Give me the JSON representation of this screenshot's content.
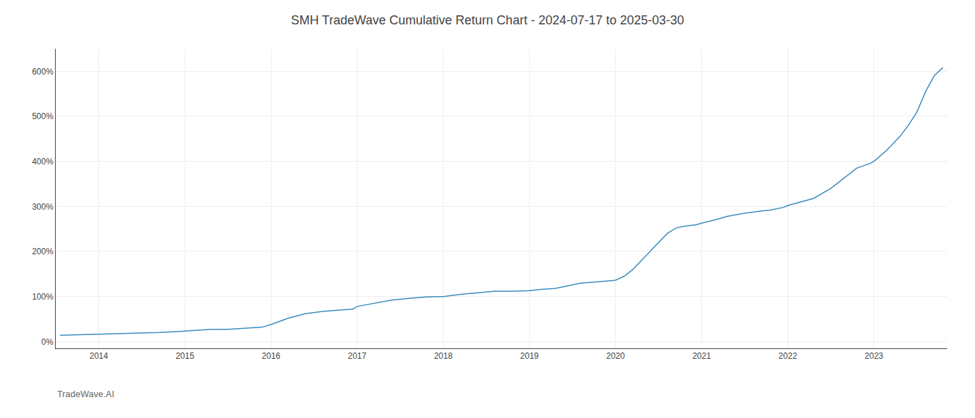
{
  "chart_data": {
    "type": "line",
    "title": "SMH TradeWave Cumulative Return Chart - 2024-07-17 to 2025-03-30",
    "annotations": [
      "TradeWave.AI"
    ],
    "x": [
      2013.55,
      2013.75,
      2013.95,
      2014.1,
      2014.3,
      2014.5,
      2014.7,
      2014.9,
      2015.0,
      2015.15,
      2015.3,
      2015.5,
      2015.7,
      2015.9,
      2016.0,
      2016.2,
      2016.4,
      2016.6,
      2016.8,
      2016.95,
      2017.0,
      2017.2,
      2017.4,
      2017.6,
      2017.8,
      2017.95,
      2018.0,
      2018.2,
      2018.4,
      2018.6,
      2018.8,
      2018.95,
      2019.0,
      2019.15,
      2019.3,
      2019.4,
      2019.5,
      2019.6,
      2019.75,
      2019.8,
      2019.9,
      2019.95,
      2020.0,
      2020.1,
      2020.2,
      2020.3,
      2020.5,
      2020.6,
      2020.7,
      2020.8,
      2020.95,
      2021.0,
      2021.15,
      2021.3,
      2021.5,
      2021.6,
      2021.7,
      2021.8,
      2021.95,
      2022.0,
      2022.15,
      2022.3,
      2022.5,
      2022.6,
      2022.7,
      2022.8,
      2022.95,
      2023.0,
      2023.15,
      2023.3,
      2023.4,
      2023.5,
      2023.6,
      2023.7,
      2023.8
    ],
    "values": [
      14,
      15,
      16,
      17,
      18,
      19,
      20,
      22,
      23,
      25,
      27,
      27,
      29,
      32,
      38,
      52,
      62,
      67,
      70,
      72,
      78,
      85,
      92,
      96,
      99,
      100,
      100,
      105,
      108,
      112,
      112,
      112,
      113,
      116,
      118,
      122,
      126,
      130,
      132,
      133,
      134,
      135,
      136,
      145,
      160,
      180,
      220,
      240,
      252,
      256,
      260,
      263,
      270,
      278,
      285,
      288,
      290,
      292,
      298,
      302,
      310,
      318,
      340,
      355,
      370,
      385,
      395,
      400,
      425,
      455,
      480,
      510,
      555,
      590,
      608
    ],
    "color": "#3a8bbf",
    "xlim": [
      2013.5,
      2023.85
    ],
    "xticks": [
      2014,
      2015,
      2016,
      2017,
      2018,
      2019,
      2020,
      2021,
      2022,
      2023
    ],
    "ylim": [
      -15,
      650
    ],
    "yticks": [
      {
        "value": 0,
        "label": "0%"
      },
      {
        "value": 100,
        "label": "100%"
      },
      {
        "value": 200,
        "label": "200%"
      },
      {
        "value": 300,
        "label": "300%"
      },
      {
        "value": 400,
        "label": "400%"
      },
      {
        "value": 500,
        "label": "500%"
      },
      {
        "value": 600,
        "label": "600%"
      }
    ],
    "grid": true
  }
}
